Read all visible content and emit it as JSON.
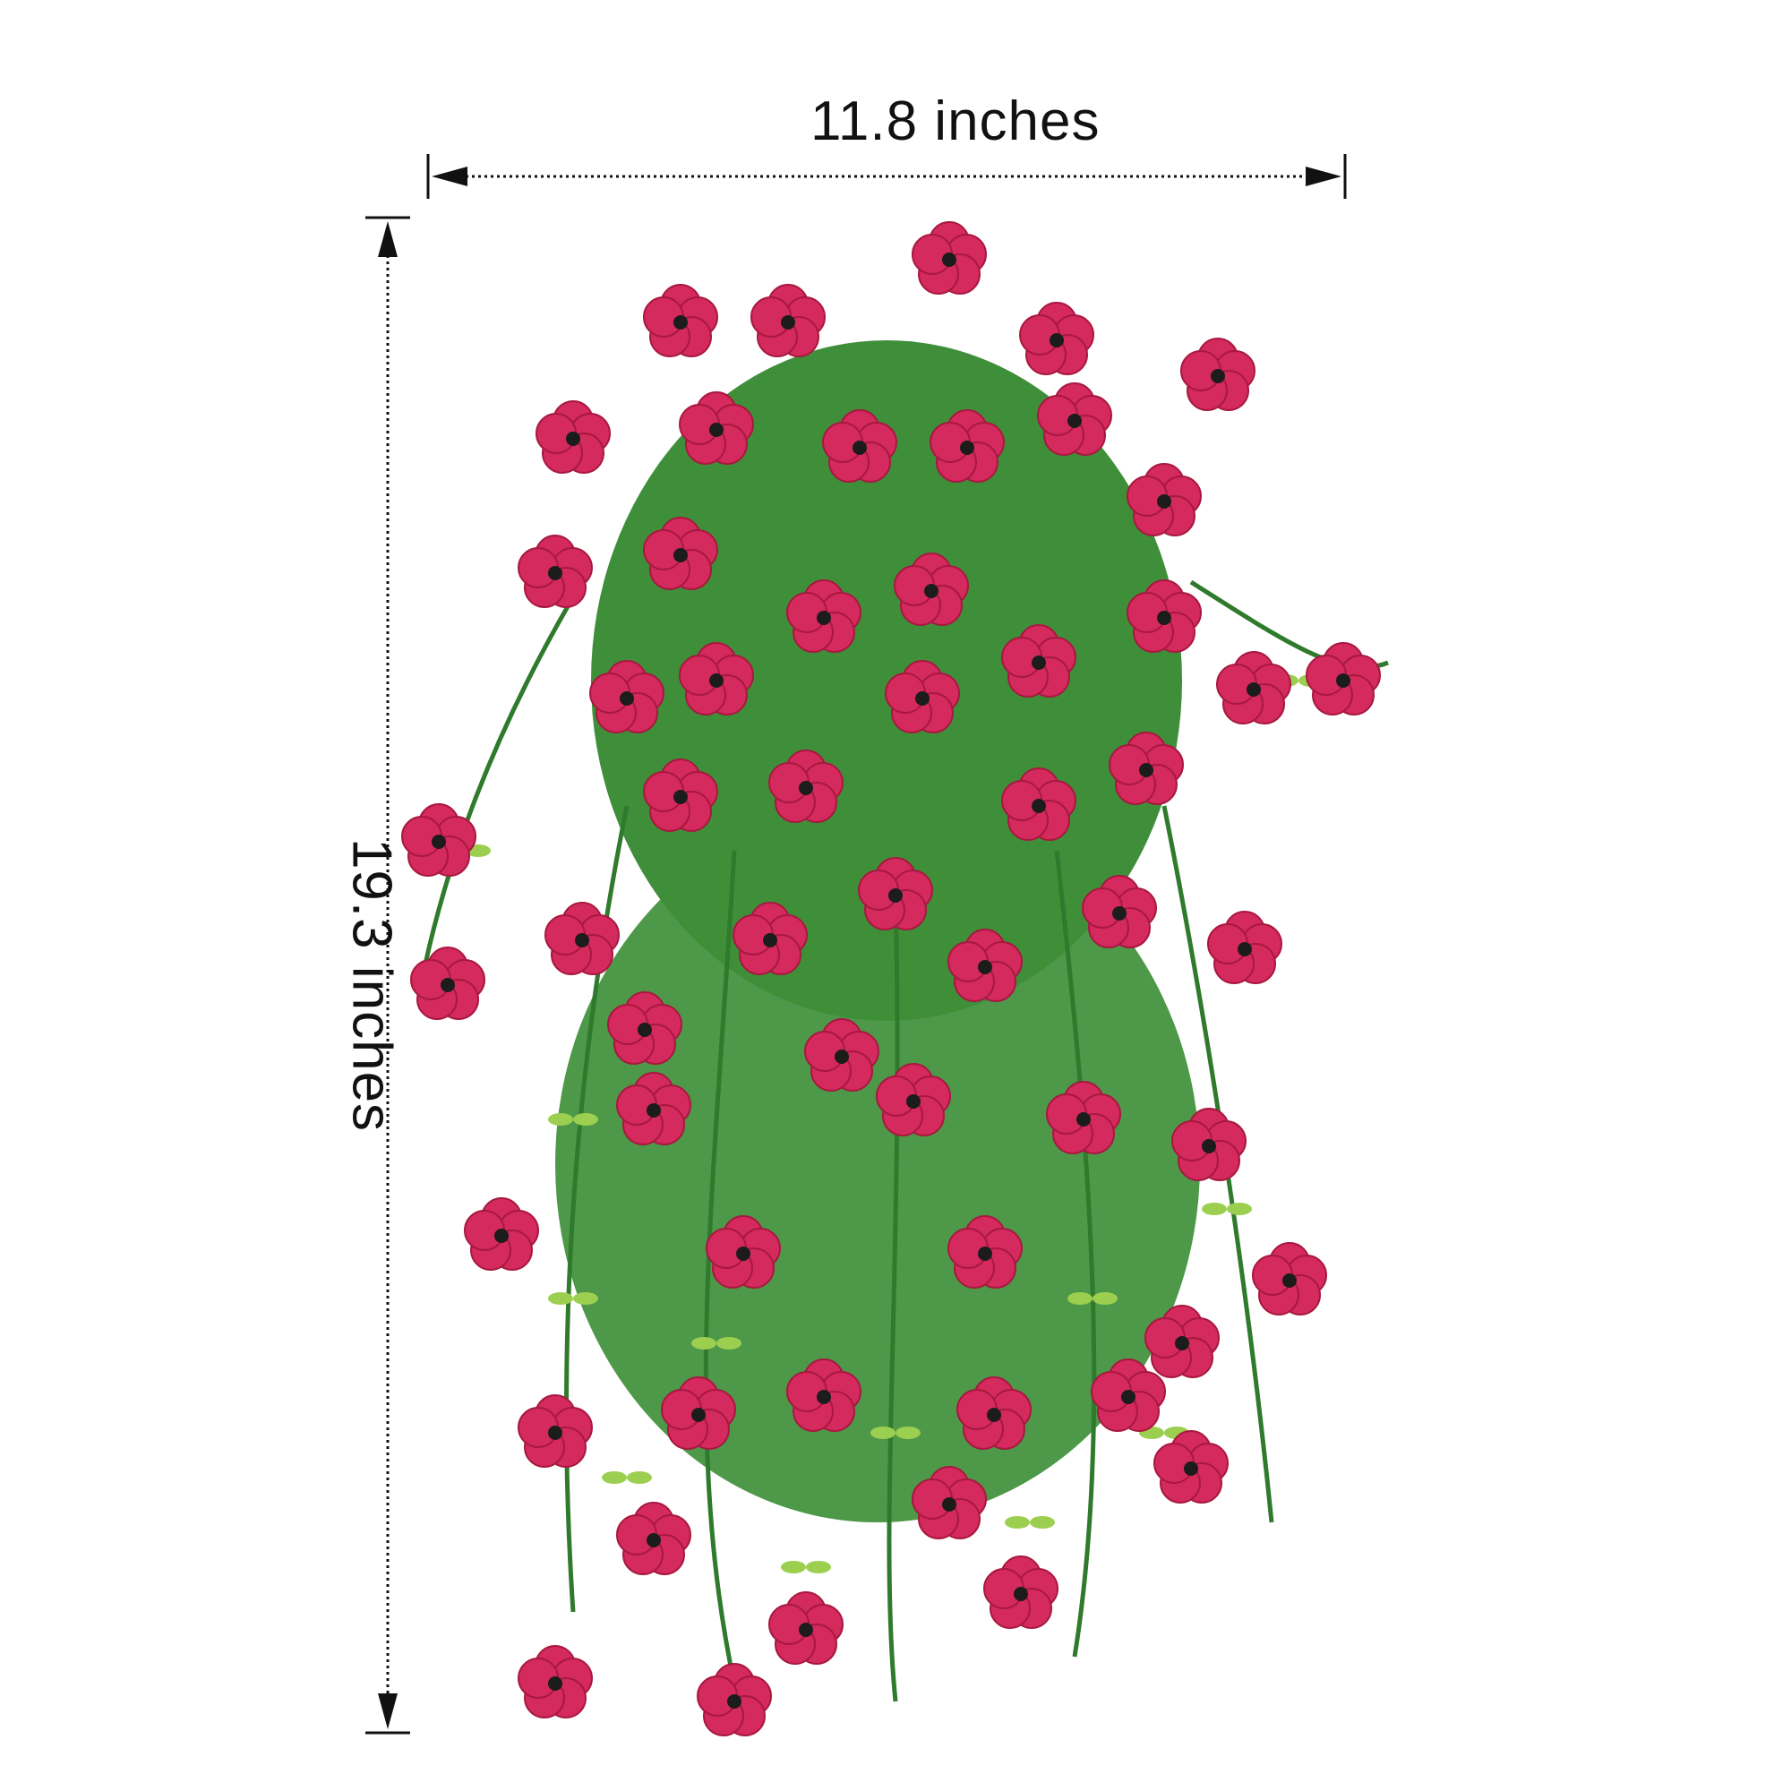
{
  "dimensions": {
    "width_label": "11.8 inches",
    "height_label": "19.3 inches"
  },
  "subject": {
    "flower_color": "#d42a5e",
    "flower_dark_color": "#a8183f",
    "center_color": "#1c1c1c",
    "leaf_color": "#3f8f3a",
    "leaf_light_color": "#9ccf4f"
  }
}
